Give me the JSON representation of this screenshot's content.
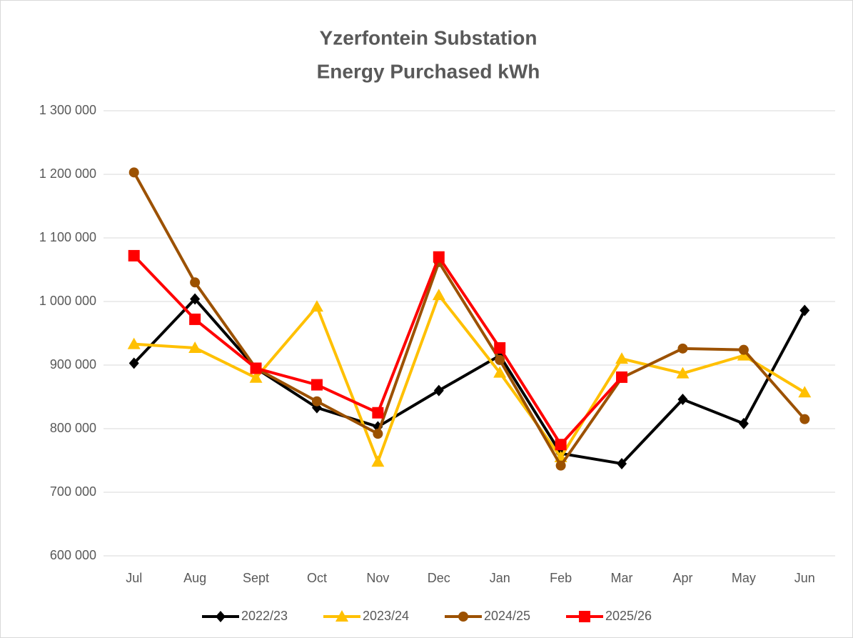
{
  "chart_data": {
    "type": "line",
    "title": [
      "Yzerfontein Substation",
      "Energy Purchased kWh"
    ],
    "categories": [
      "Jul",
      "Aug",
      "Sept",
      "Oct",
      "Nov",
      "Dec",
      "Jan",
      "Feb",
      "Mar",
      "Apr",
      "May",
      "Jun"
    ],
    "series": [
      {
        "name": "2022/23",
        "color": "#000000",
        "marker": "diamond",
        "values": [
          903000,
          1004000,
          895000,
          833000,
          803000,
          860000,
          915000,
          761000,
          745000,
          846000,
          808000,
          986000
        ]
      },
      {
        "name": "2023/24",
        "color": "#ffc000",
        "marker": "triangle",
        "values": [
          933000,
          927000,
          880000,
          992000,
          748000,
          1010000,
          888000,
          755000,
          910000,
          887000,
          915000,
          857000
        ]
      },
      {
        "name": "2024/25",
        "color": "#9c5100",
        "marker": "circle",
        "values": [
          1203000,
          1030000,
          895000,
          843000,
          792000,
          1062000,
          908000,
          742000,
          880000,
          926000,
          924000,
          815000
        ]
      },
      {
        "name": "2025/26",
        "color": "#ff0000",
        "marker": "square",
        "values": [
          1072000,
          972000,
          895000,
          869000,
          825000,
          1070000,
          927000,
          775000,
          881000,
          null,
          null,
          null
        ]
      }
    ],
    "ylim": [
      600000,
      1300000
    ],
    "yticks": [
      {
        "value": 600000,
        "label": "600 000"
      },
      {
        "value": 700000,
        "label": "700 000"
      },
      {
        "value": 800000,
        "label": "800 000"
      },
      {
        "value": 900000,
        "label": "900 000"
      },
      {
        "value": 1000000,
        "label": "1 000 000"
      },
      {
        "value": 1100000,
        "label": "1 100 000"
      },
      {
        "value": 1200000,
        "label": "1 200 000"
      },
      {
        "value": 1300000,
        "label": "1 300 000"
      }
    ],
    "grid": true,
    "legend": "bottom"
  }
}
